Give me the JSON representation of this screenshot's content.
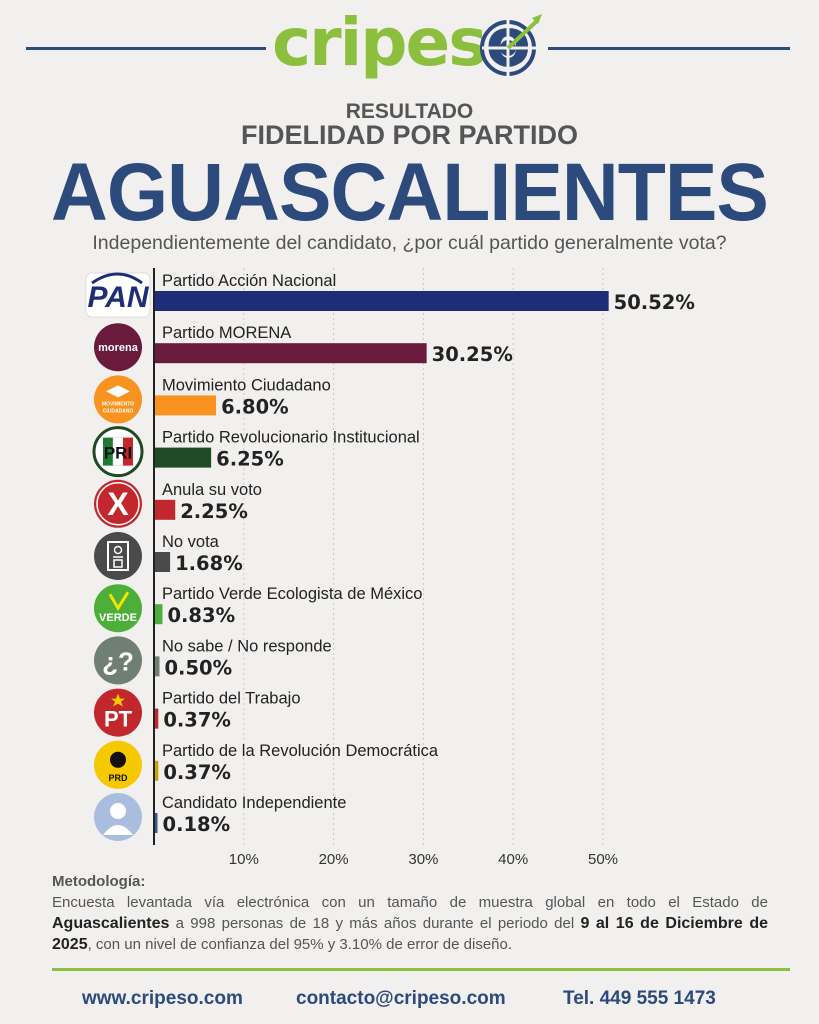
{
  "header": {
    "logo_part1": "cripes",
    "logo_part2": "o",
    "line1": "RESULTADO",
    "line2": "FIDELIDAD POR PARTIDO",
    "title": "AGUASCALIENTES",
    "question": "Independientemente del candidato, ¿por cuál partido generalmente vota?"
  },
  "chart_data": {
    "type": "bar",
    "orientation": "horizontal",
    "categories": [
      "Partido Acción Nacional",
      "Partido MORENA",
      "Movimiento Ciudadano",
      "Partido Revolucionario Institucional",
      "Anula su voto",
      "No vota",
      "Partido Verde Ecologista de México",
      "No sabe / No responde",
      "Partido del Trabajo",
      "Partido de la Revolución Democrática",
      "Candidato Independiente"
    ],
    "values": [
      50.52,
      30.25,
      6.8,
      6.25,
      2.25,
      1.68,
      0.83,
      0.5,
      0.37,
      0.37,
      0.18
    ],
    "value_labels": [
      "50.52%",
      "30.25%",
      "6.80%",
      "6.25%",
      "2.25%",
      "1.68%",
      "0.83%",
      "0.50%",
      "0.37%",
      "0.37%",
      "0.18%"
    ],
    "colors": [
      "#1e2d78",
      "#6a1b3b",
      "#f7931e",
      "#1f4a24",
      "#c1272d",
      "#4a4a4a",
      "#4caf3a",
      "#6f7f71",
      "#c1272d",
      "#c9a400",
      "#3b5a8c"
    ],
    "icons": [
      "pan-logo",
      "morena-logo",
      "movimiento-ciudadano-logo",
      "pri-logo",
      "x-icon",
      "ballot-icon",
      "verde-logo",
      "question-icon",
      "pt-logo",
      "prd-logo",
      "person-icon"
    ],
    "icon_texts": [
      "PAN",
      "morena",
      "MOVIMIENTO CIUDADANO",
      "PRI",
      "X",
      "",
      "VERDE",
      "¿?",
      "PT",
      "PRD",
      ""
    ],
    "xticks": [
      "10%",
      "20%",
      "30%",
      "40%",
      "50%"
    ],
    "xtick_values": [
      10,
      20,
      30,
      40,
      50
    ],
    "xlim": [
      0,
      52.5
    ],
    "grid": true,
    "legend": "none"
  },
  "methodology": {
    "title": "Metodología:",
    "text1": "Encuesta levantada vía electrónica con un tamaño de muestra global en todo el Estado de",
    "state": "Aguascalientes",
    "text2": " a 998 personas de 18 y más años durante el periodo del ",
    "dates": "9 al 16 de Diciembre de 2025",
    "text3": ", con un nivel de confianza del 95% y 3.10% de error de diseño."
  },
  "footer": {
    "website": "www.cripeso.com",
    "email": "contacto@cripeso.com",
    "phone": "Tel. 449 555 1473"
  },
  "colors": {
    "brand_blue": "#2c4a7c",
    "brand_green": "#8dbf3f"
  }
}
